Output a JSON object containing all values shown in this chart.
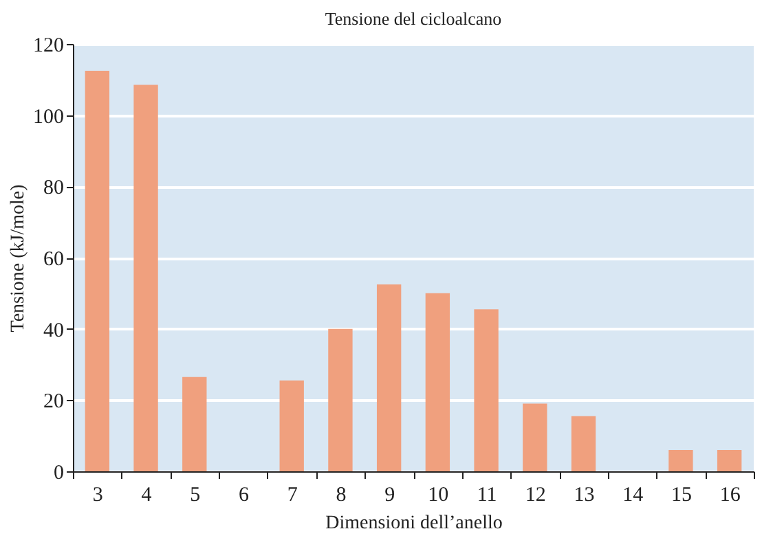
{
  "chart_data": {
    "type": "bar",
    "title": "Tensione del cicloalcano",
    "xlabel": "Dimensioni dell’anello",
    "ylabel": "Tensione (kJ/mole)",
    "categories": [
      "3",
      "4",
      "5",
      "6",
      "7",
      "8",
      "9",
      "10",
      "11",
      "12",
      "13",
      "14",
      "15",
      "16"
    ],
    "values": [
      112.5,
      108.5,
      26.5,
      0,
      25.5,
      40,
      52.5,
      50,
      45.5,
      19,
      15.5,
      0,
      6,
      6
    ],
    "color": "#f0a07e",
    "ylim": [
      0,
      120
    ],
    "yticks": [
      0,
      20,
      40,
      60,
      80,
      100,
      120
    ],
    "grid": "y"
  }
}
